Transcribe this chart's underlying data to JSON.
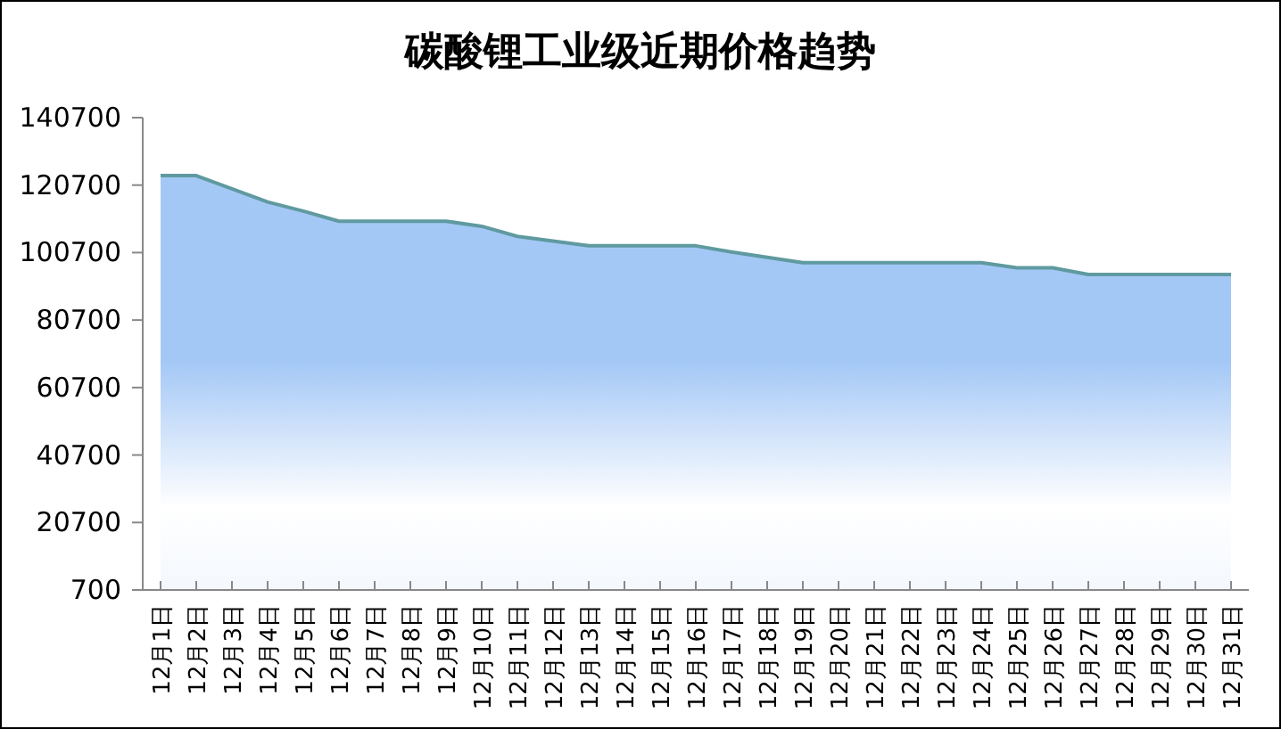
{
  "chart_data": {
    "type": "area",
    "title": "碳酸锂工业级近期价格趋势",
    "categories": [
      "12月1日",
      "12月2日",
      "12月3日",
      "12月4日",
      "12月5日",
      "12月6日",
      "12月7日",
      "12月8日",
      "12月9日",
      "12月10日",
      "12月11日",
      "12月12日",
      "12月13日",
      "12月14日",
      "12月15日",
      "12月16日",
      "12月17日",
      "12月18日",
      "12月19日",
      "12月20日",
      "12月21日",
      "12月22日",
      "12月23日",
      "12月24日",
      "12月25日",
      "12月26日",
      "12月27日",
      "12月28日",
      "12月29日",
      "12月30日",
      "12月31日"
    ],
    "series": [
      {
        "color": "#a4c8f6",
        "values": [
          123500,
          123500,
          119600,
          115700,
          113000,
          110000,
          110000,
          110000,
          110000,
          108500,
          105500,
          104100,
          102700,
          102700,
          102700,
          102700,
          100900,
          99300,
          97700,
          97700,
          97700,
          97700,
          97700,
          97700,
          96200,
          96200,
          94200,
          94200,
          94200,
          94200,
          94200
        ]
      }
    ],
    "ylim": [
      700,
      140700
    ],
    "yticks": [
      700,
      20700,
      40700,
      60700,
      80700,
      100700,
      120700,
      140700
    ],
    "grid": false
  }
}
